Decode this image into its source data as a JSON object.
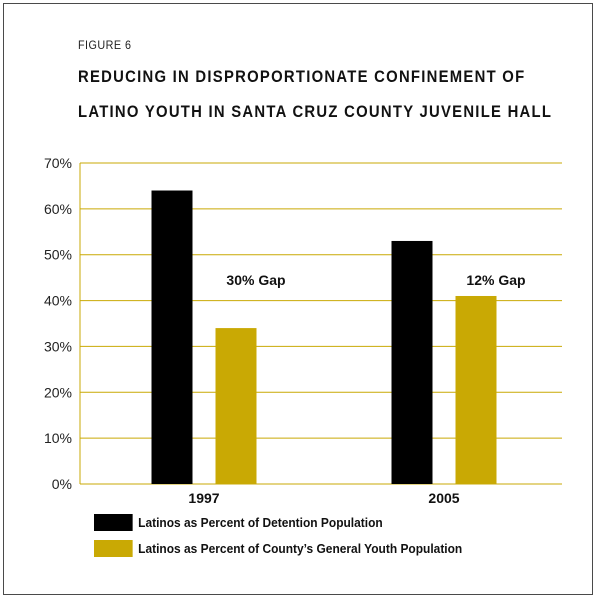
{
  "figure_label": "FIGURE 6",
  "title_line1": "REDUCING IN DISPROPORTIONATE CONFINEMENT OF",
  "title_line2": "LATINO YOUTH IN SANTA CRUZ COUNTY JUVENILE HALL",
  "colors": {
    "detention": "#000000",
    "general": "#c9a904",
    "grid": "#c9a904"
  },
  "chart_data": {
    "type": "bar",
    "categories": [
      "1997",
      "2005"
    ],
    "series": [
      {
        "name": "Latinos as Percent of Detention Population",
        "values": [
          64,
          53
        ]
      },
      {
        "name": "Latinos as Percent of County’s General Youth Population",
        "values": [
          34,
          41
        ]
      }
    ],
    "annotations": [
      "30% Gap",
      "12% Gap"
    ],
    "ylim": [
      0,
      70
    ],
    "yticks": [
      "0%",
      "10%",
      "20%",
      "30%",
      "40%",
      "50%",
      "60%",
      "70%"
    ],
    "grid": true,
    "legend_position": "bottom-left"
  }
}
